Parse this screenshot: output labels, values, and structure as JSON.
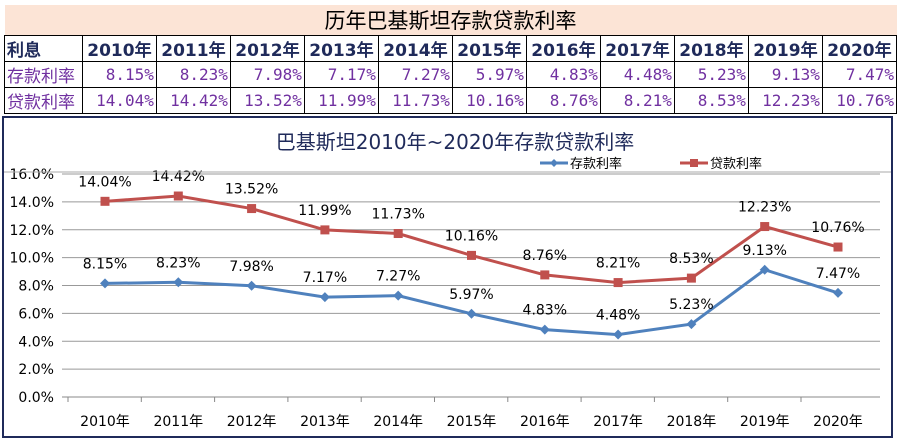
{
  "table": {
    "title": "历年巴基斯坦存款贷款利率",
    "header": [
      "利息",
      "2010年",
      "2011年",
      "2012年",
      "2013年",
      "2014年",
      "2015年",
      "2016年",
      "2017年",
      "2018年",
      "2019年",
      "2020年"
    ],
    "rows": [
      [
        "存款利率",
        "8.15%",
        "8.23%",
        "7.98%",
        "7.17%",
        "7.27%",
        "5.97%",
        "4.83%",
        "4.48%",
        "5.23%",
        "9.13%",
        "7.47%"
      ],
      [
        "贷款利率",
        "14.04%",
        "14.42%",
        "13.52%",
        "11.99%",
        "11.73%",
        "10.16%",
        "8.76%",
        "8.21%",
        "8.53%",
        "12.23%",
        "10.76%"
      ]
    ]
  },
  "chart_data": {
    "type": "line",
    "title": "巴基斯坦2010年~2020年存款贷款利率",
    "categories": [
      "2010年",
      "2011年",
      "2012年",
      "2013年",
      "2014年",
      "2015年",
      "2016年",
      "2017年",
      "2018年",
      "2019年",
      "2020年"
    ],
    "series": [
      {
        "name": "存款利率",
        "color": "#4f81bd",
        "marker": "diamond",
        "values": [
          8.15,
          8.23,
          7.98,
          7.17,
          7.27,
          5.97,
          4.83,
          4.48,
          5.23,
          9.13,
          7.47
        ]
      },
      {
        "name": "贷款利率",
        "color": "#c0504d",
        "marker": "square",
        "values": [
          14.04,
          14.42,
          13.52,
          11.99,
          11.73,
          10.16,
          8.76,
          8.21,
          8.53,
          12.23,
          10.76
        ]
      }
    ],
    "ylim": [
      0,
      16
    ],
    "yticks": [
      "0.0%",
      "2.0%",
      "4.0%",
      "6.0%",
      "8.0%",
      "10.0%",
      "12.0%",
      "14.0%",
      "16.0%"
    ],
    "grid": true,
    "legend": "top-right"
  }
}
